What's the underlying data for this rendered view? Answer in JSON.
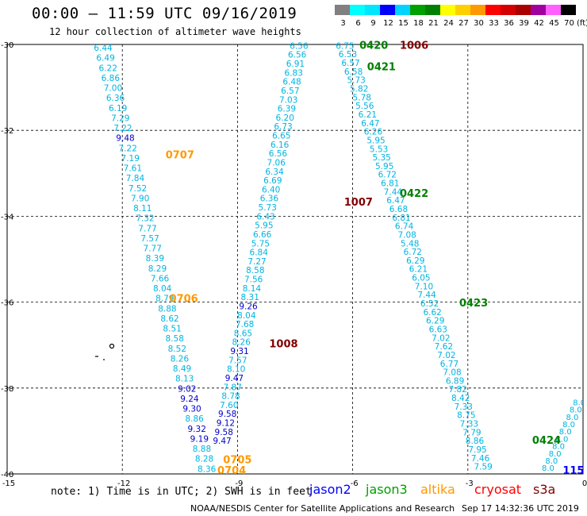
{
  "title": "00:00 – 11:59 UTC 09/16/2019",
  "subtitle": "12 hour collection of altimeter wave heights",
  "note": "note: 1) Time is in UTC; 2) SWH is in feet",
  "credit": "NOAA/NESDIS Center for Satellite Applications and Research",
  "generated": "Sep 17 14:32:36 UTC 2019",
  "color_scale": {
    "values": [
      "3",
      "6",
      "9",
      "12",
      "15",
      "18",
      "21",
      "24",
      "27",
      "30",
      "33",
      "36",
      "39",
      "42",
      "45",
      "70"
    ],
    "unit": "(ft)",
    "colors": [
      "#808080",
      "#00ffff",
      "#00e6ff",
      "#0000ff",
      "#00d3ff",
      "#00a000",
      "#008000",
      "#ffff00",
      "#ffd000",
      "#ff9900",
      "#ff0000",
      "#d40000",
      "#aa0000",
      "#a000a0",
      "#ff60ff",
      "#000000"
    ]
  },
  "satellites": [
    {
      "name": "jason2",
      "color": "#0000ff"
    },
    {
      "name": "jason3",
      "color": "#00a000"
    },
    {
      "name": "altika",
      "color": "#ff9900"
    },
    {
      "name": "cryosat",
      "color": "#ff0000"
    },
    {
      "name": "s3a",
      "color": "#800000"
    }
  ],
  "axes": {
    "lon_ticks": [
      "-15",
      "-12",
      "-9",
      "-6",
      "-3",
      "0"
    ],
    "lat_ticks": [
      "-30",
      "-32",
      "-34",
      "-36",
      "-38",
      "-40"
    ],
    "lon_range": [
      -15,
      0
    ],
    "lat_range": [
      -40,
      -30
    ]
  },
  "tracks": [
    {
      "color": "#00c8e6",
      "values": [
        "6.44",
        "6.49",
        "6.22",
        "6.86",
        "7.00",
        "6.36",
        "6.19",
        "7.29",
        "7.22"
      ]
    },
    {
      "color": "#0000c8",
      "values": [
        "9.48"
      ]
    },
    {
      "color": "#00c8e6",
      "values": [
        "7.22",
        "7.19",
        "7.61",
        "7.84",
        "7.52",
        "7.90",
        "8.11",
        "7.32",
        "7.77",
        "7.57",
        "7.77",
        "8.39",
        "8.29",
        "7.66",
        "8.04",
        "8.79",
        "8.88",
        "8.62",
        "8.51",
        "8.58",
        "8.52",
        "8.26",
        "8.49",
        "8.13"
      ]
    },
    {
      "color": "#0000c8",
      "values": [
        "9.02",
        "9.24",
        "9.30"
      ]
    },
    {
      "color": "#00c8e6",
      "values": [
        "8.86"
      ]
    },
    {
      "color": "#0000c8",
      "values": [
        "9.32",
        "9.19"
      ]
    },
    {
      "color": "#00c8e6",
      "values": [
        "8.88",
        "8.28",
        "8.36"
      ]
    }
  ],
  "track_b": [
    "6.56",
    "6.56",
    "6.91",
    "6.83",
    "6.48",
    "6.57",
    "7.03",
    "6.39",
    "6.20",
    "6.73",
    "6.65",
    "6.16",
    "6.56",
    "7.06",
    "6.34",
    "6.69",
    "6.40",
    "6.36",
    "5.73",
    "6.43",
    "5.95",
    "6.66",
    "5.75",
    "6.84",
    "7.27",
    "8.58",
    "7.56",
    "8.14",
    "8.31"
  ],
  "track_b_blue": [
    "9.26"
  ],
  "track_b2": [
    "8.04",
    "7.68",
    "8.65",
    "8.26"
  ],
  "track_b_blue2": [
    "9.31"
  ],
  "track_b3": [
    "7.57",
    "8.10"
  ],
  "track_b_blue3": [
    "9.47"
  ],
  "track_b4": [
    "7.87",
    "8.78",
    "7.60"
  ],
  "track_b_blue4": [
    "9.58",
    "9.12",
    "9.58",
    "9.47"
  ],
  "track_c": [
    "6.75",
    "6.53",
    "6.57",
    "6.58",
    "5.73",
    "5.82",
    "5.78",
    "5.56",
    "6.21",
    "6.47",
    "6.26",
    "5.95",
    "5.53",
    "5.35",
    "5.95",
    "6.72",
    "6.81",
    "7.44",
    "6.47",
    "6.68",
    "6.81",
    "6.74",
    "7.08",
    "5.48",
    "6.72",
    "6.29",
    "6.21",
    "6.05",
    "7.10",
    "7.44",
    "6.52",
    "6.62",
    "6.29",
    "6.63",
    "7.02",
    "7.62",
    "7.02",
    "6.77",
    "7.08",
    "6.89",
    "7.82",
    "8.42",
    "7.33",
    "8.75",
    "7.33",
    "7.79",
    "8.86",
    "7.95",
    "7.46",
    "7.59"
  ],
  "time_labels": [
    {
      "text": "0420",
      "color": "#008000"
    },
    {
      "text": "0421",
      "color": "#008000"
    },
    {
      "text": "1006",
      "color": "#800000"
    },
    {
      "text": "0707",
      "color": "#ff9900"
    },
    {
      "text": "1007",
      "color": "#800000"
    },
    {
      "text": "0422",
      "color": "#008000"
    },
    {
      "text": "0706",
      "color": "#ff9900"
    },
    {
      "text": "1008",
      "color": "#800000"
    },
    {
      "text": "0423",
      "color": "#008000"
    },
    {
      "text": "0424",
      "color": "#008000"
    },
    {
      "text": "0705",
      "color": "#ff9900"
    },
    {
      "text": "0704",
      "color": "#ff9900"
    },
    {
      "text": "115",
      "color": "#0000ff"
    }
  ]
}
